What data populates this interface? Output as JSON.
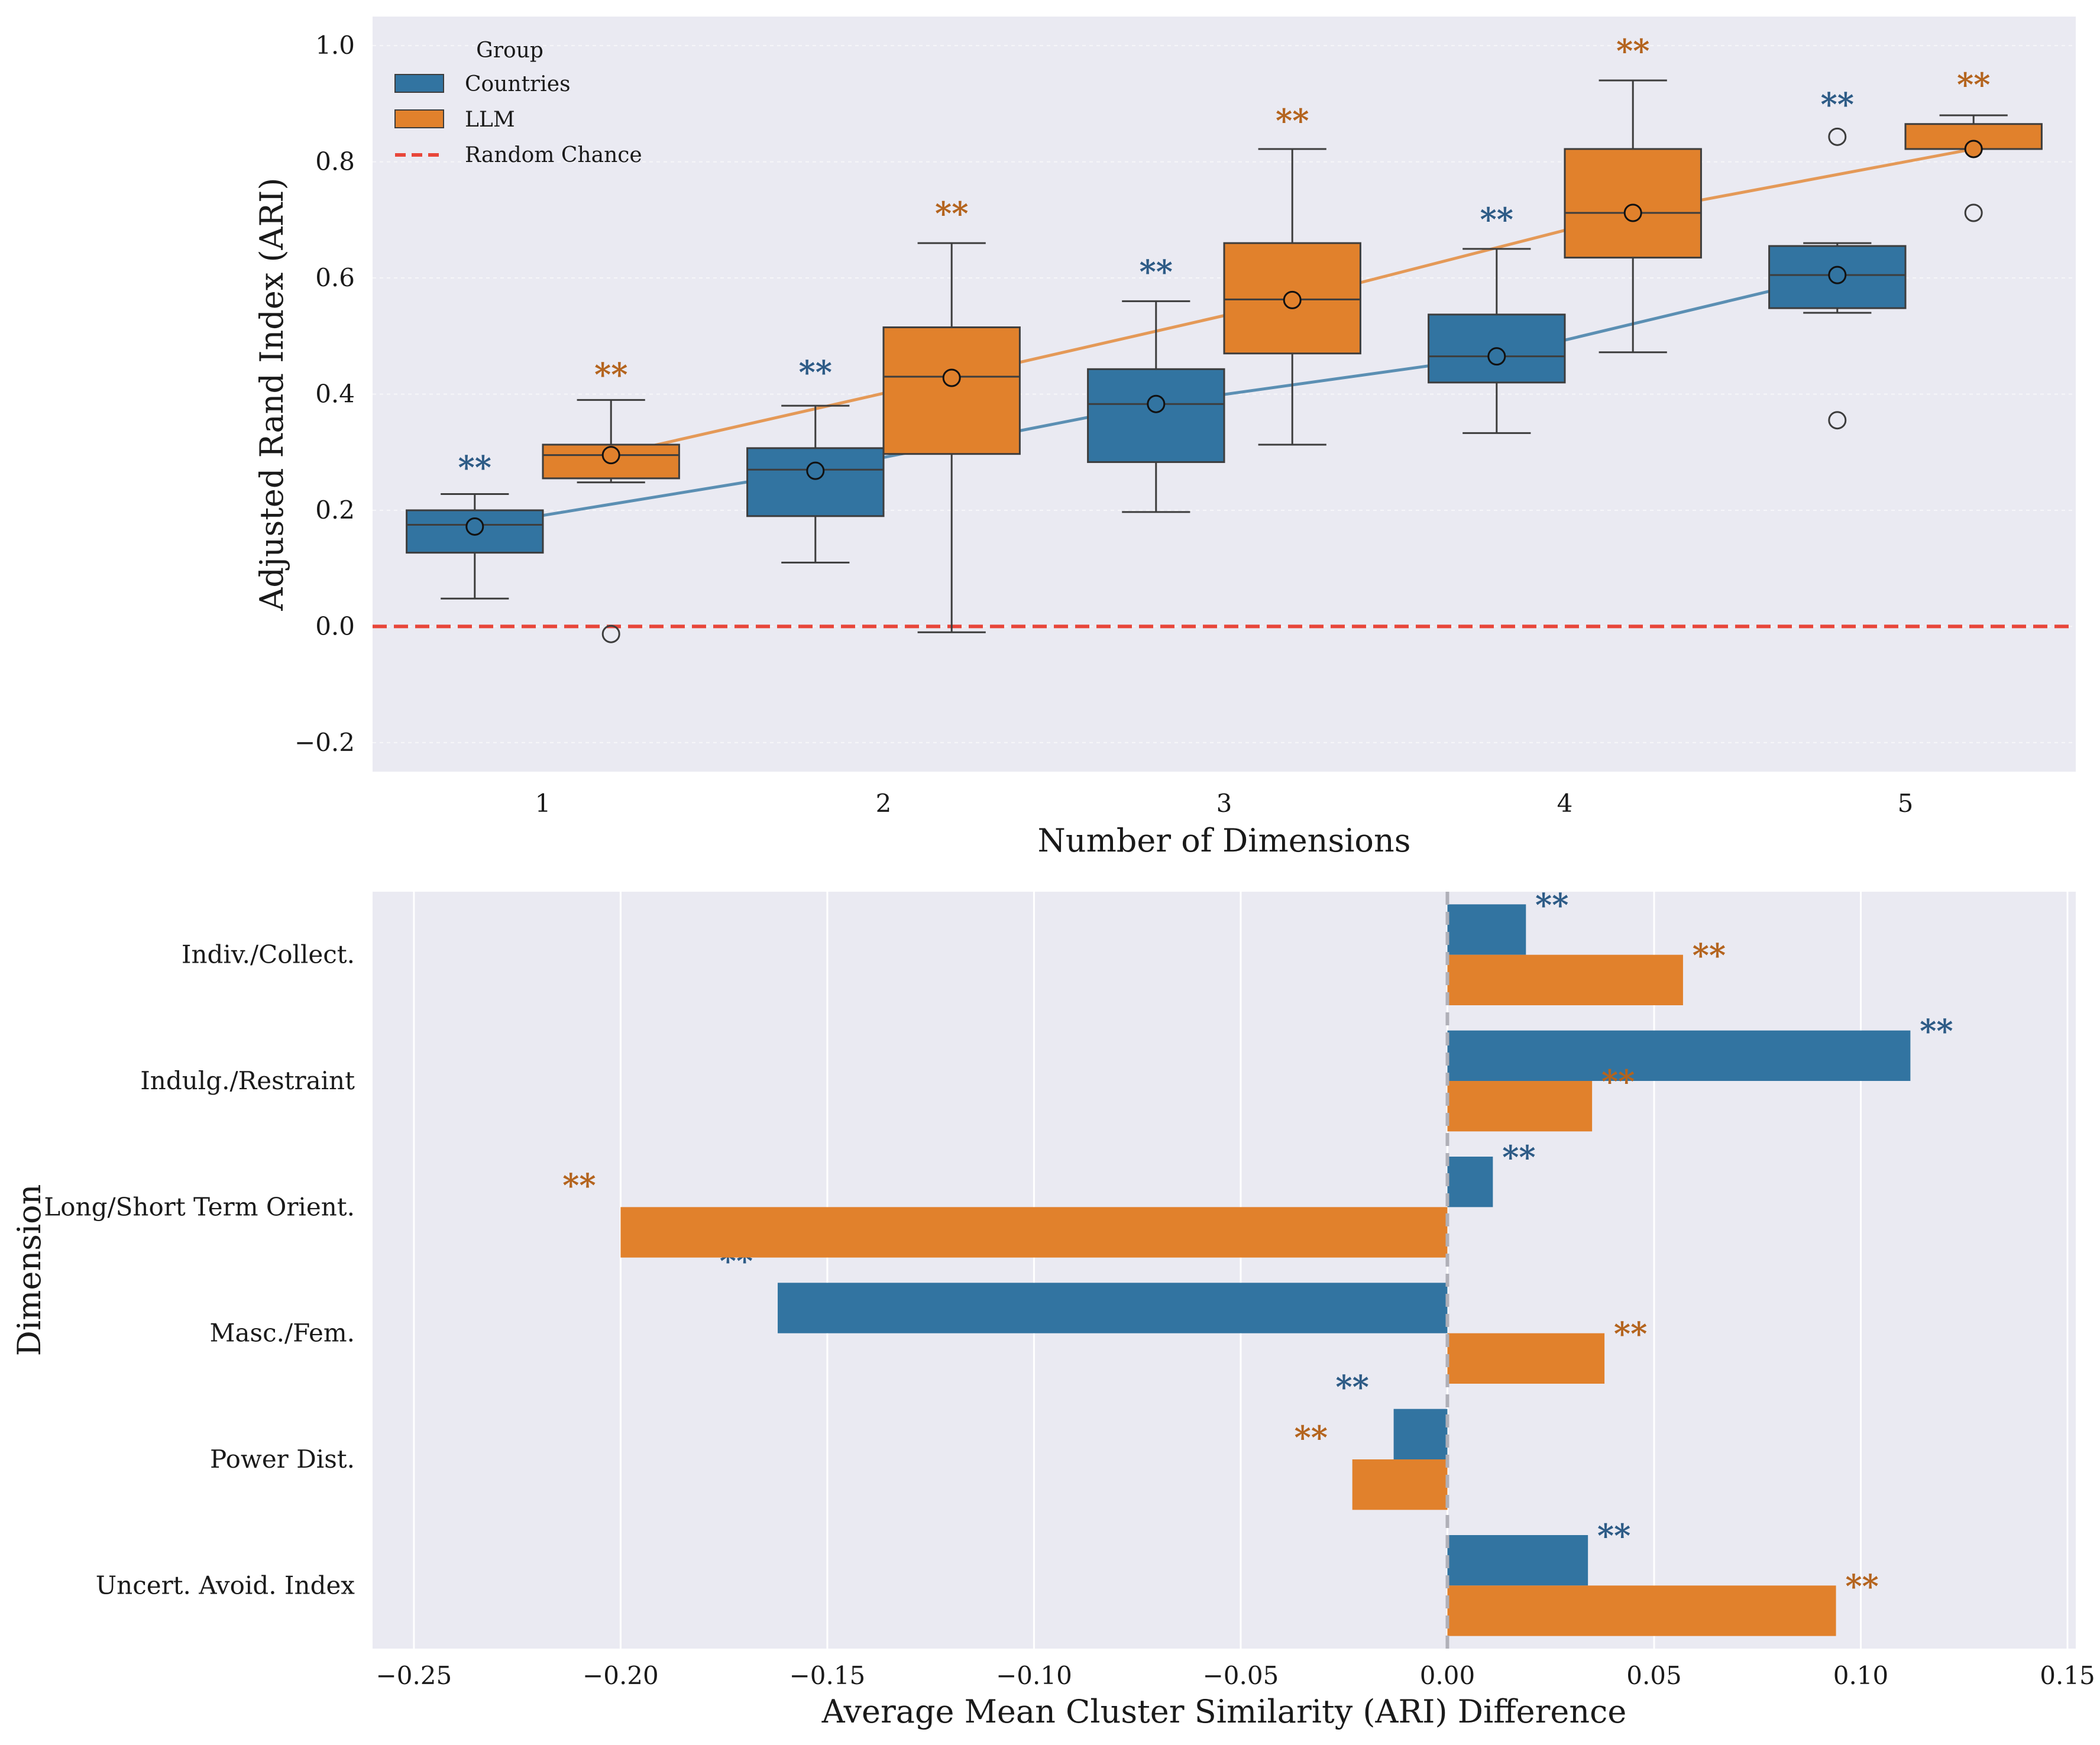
{
  "chart_data": [
    {
      "type": "box",
      "xlabel": "Number of Dimensions",
      "ylabel": "Adjusted Rand Index (ARI)",
      "categories": [
        "1",
        "2",
        "3",
        "4",
        "5"
      ],
      "ylim": [
        -0.25,
        1.05
      ],
      "yticks": [
        -0.2,
        0.0,
        0.2,
        0.4,
        0.6,
        0.8,
        1.0
      ],
      "ytick_labels": [
        "−0.2",
        "0.0",
        "0.2",
        "0.4",
        "0.6",
        "0.8",
        "1.0"
      ],
      "grid": true,
      "legend": {
        "title": "Group",
        "placement": "top-left",
        "entries": [
          "Countries",
          "LLM",
          "Random Chance"
        ]
      },
      "reference_line": {
        "label": "Random Chance",
        "y": 0.0,
        "color": "#e8463a",
        "style": "dashed"
      },
      "significance_marker": "**",
      "series": [
        {
          "name": "Countries",
          "color": "#3274a1",
          "star_color": "#2d5b86",
          "boxes": [
            {
              "category": "1",
              "whisker_low": 0.048,
              "q1": 0.127,
              "median": 0.175,
              "q3": 0.2,
              "whisker_high": 0.228,
              "mean": 0.172,
              "outliers": []
            },
            {
              "category": "2",
              "whisker_low": 0.11,
              "q1": 0.19,
              "median": 0.27,
              "q3": 0.307,
              "whisker_high": 0.38,
              "mean": 0.268,
              "outliers": []
            },
            {
              "category": "3",
              "whisker_low": 0.197,
              "q1": 0.283,
              "median": 0.383,
              "q3": 0.443,
              "whisker_high": 0.56,
              "mean": 0.383,
              "outliers": []
            },
            {
              "category": "4",
              "whisker_low": 0.333,
              "q1": 0.42,
              "median": 0.465,
              "q3": 0.537,
              "whisker_high": 0.65,
              "mean": 0.465,
              "outliers": []
            },
            {
              "category": "5",
              "whisker_low": 0.54,
              "q1": 0.548,
              "median": 0.605,
              "q3": 0.655,
              "whisker_high": 0.66,
              "mean": 0.605,
              "outliers": [
                0.355,
                0.843
              ]
            }
          ],
          "mean_line": [
            0.172,
            0.268,
            0.383,
            0.465,
            0.605
          ],
          "star_y": [
            0.283,
            0.447,
            0.62,
            0.71,
            0.908
          ]
        },
        {
          "name": "LLM",
          "color": "#e1812c",
          "star_color": "#b4641e",
          "boxes": [
            {
              "category": "1",
              "whisker_low": 0.248,
              "q1": 0.255,
              "median": 0.295,
              "q3": 0.313,
              "whisker_high": 0.39,
              "mean": 0.295,
              "outliers": [
                -0.013
              ]
            },
            {
              "category": "2",
              "whisker_low": -0.01,
              "q1": 0.297,
              "median": 0.43,
              "q3": 0.515,
              "whisker_high": 0.66,
              "mean": 0.428,
              "outliers": []
            },
            {
              "category": "3",
              "whisker_low": 0.313,
              "q1": 0.47,
              "median": 0.563,
              "q3": 0.66,
              "whisker_high": 0.822,
              "mean": 0.562,
              "outliers": []
            },
            {
              "category": "4",
              "whisker_low": 0.472,
              "q1": 0.635,
              "median": 0.712,
              "q3": 0.822,
              "whisker_high": 0.94,
              "mean": 0.712,
              "outliers": []
            },
            {
              "category": "5",
              "whisker_low": 0.822,
              "q1": 0.822,
              "median": 0.822,
              "q3": 0.865,
              "whisker_high": 0.88,
              "mean": 0.822,
              "outliers": [
                0.712
              ]
            }
          ],
          "mean_line": [
            0.295,
            0.428,
            0.562,
            0.712,
            0.822
          ],
          "star_y": [
            0.443,
            0.72,
            0.88,
            1.0,
            0.942
          ]
        }
      ]
    },
    {
      "type": "bar",
      "orientation": "horizontal",
      "xlabel": "Average Mean Cluster Similarity (ARI) Difference",
      "ylabel": "Dimension",
      "categories": [
        "Indiv./Collect.",
        "Indulg./Restraint",
        "Long/Short Term Orient.",
        "Masc./Fem.",
        "Power Dist.",
        "Uncert. Avoid. Index"
      ],
      "xlim": [
        -0.26,
        0.152
      ],
      "xticks": [
        -0.25,
        -0.2,
        -0.15,
        -0.1,
        -0.05,
        0.0,
        0.05,
        0.1,
        0.15
      ],
      "xtick_labels": [
        "−0.25",
        "−0.20",
        "−0.15",
        "−0.10",
        "−0.05",
        "0.00",
        "0.05",
        "0.10",
        "0.15"
      ],
      "zero_line": {
        "x": 0.0,
        "style": "dashed",
        "color": "#b0b0b8"
      },
      "significance_marker": "**",
      "grid": true,
      "series": [
        {
          "name": "Countries",
          "color": "#3274a1",
          "star_color": "#2d5b86",
          "values": [
            0.019,
            0.112,
            0.011,
            -0.162,
            -0.013,
            0.034
          ]
        },
        {
          "name": "LLM",
          "color": "#e1812c",
          "star_color": "#b4641e",
          "values": [
            0.057,
            0.035,
            -0.2,
            0.038,
            -0.023,
            0.094
          ]
        }
      ]
    }
  ]
}
